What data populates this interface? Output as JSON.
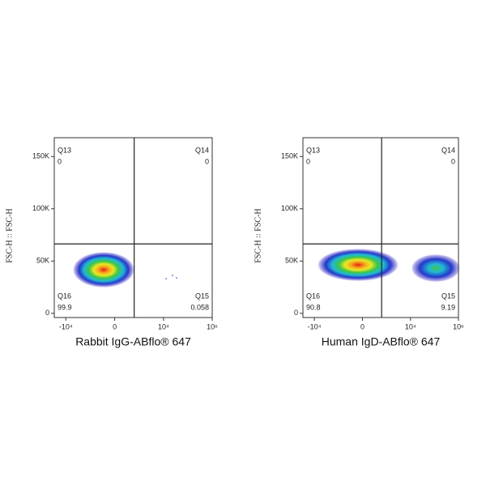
{
  "chart_data": [
    {
      "type": "scatter",
      "xlabel": "Rabbit IgG-ABflo® 647",
      "ylabel": "FSC-H :: FSC-H",
      "xscale": "symlog",
      "xlim": [
        -30000,
        1000000
      ],
      "ylim": [
        -4000,
        168000
      ],
      "xticks": [
        {
          "value": -10000,
          "label": "-10⁴"
        },
        0,
        {
          "value": 10000,
          "label": "10⁴"
        },
        {
          "value": 1000000,
          "label": "10⁶"
        }
      ],
      "yticks": [
        0,
        {
          "value": 50000,
          "label": "50K"
        },
        {
          "value": 100000,
          "label": "100K"
        },
        {
          "value": 150000,
          "label": "150K"
        }
      ],
      "gate_x": 530,
      "gate_y": 66400,
      "quadrants": [
        {
          "name": "Q13",
          "value": 0
        },
        {
          "name": "Q14",
          "value": 0
        },
        {
          "name": "Q15",
          "value": 0.058
        },
        {
          "name": "Q16",
          "value": 99.9
        }
      ]
    },
    {
      "type": "scatter",
      "xlabel": "Human IgD-ABflo® 647",
      "ylabel": "FSC-H :: FSC-H",
      "xscale": "symlog",
      "xlim": [
        -30000,
        1000000
      ],
      "ylim": [
        -4000,
        168000
      ],
      "xticks": [
        {
          "value": -10000,
          "label": "-10⁴"
        },
        0,
        {
          "value": 10000,
          "label": "10⁴"
        },
        {
          "value": 1000000,
          "label": "10⁶"
        }
      ],
      "yticks": [
        0,
        {
          "value": 50000,
          "label": "50K"
        },
        {
          "value": 100000,
          "label": "100K"
        },
        {
          "value": 150000,
          "label": "150K"
        }
      ],
      "gate_x": 530,
      "gate_y": 66400,
      "quadrants": [
        {
          "name": "Q13",
          "value": 0
        },
        {
          "name": "Q14",
          "value": 0
        },
        {
          "name": "Q15",
          "value": 9.19
        },
        {
          "name": "Q16",
          "value": 90.8
        }
      ]
    }
  ]
}
